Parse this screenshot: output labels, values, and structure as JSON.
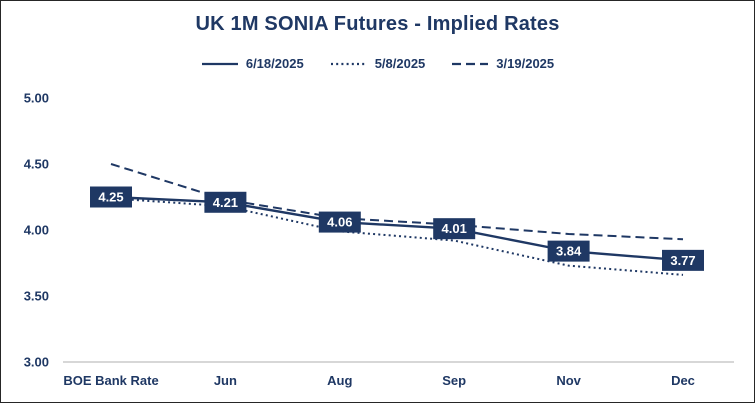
{
  "title": "UK 1M SONIA Futures - Implied Rates",
  "chart_data": {
    "type": "line",
    "title": "UK 1M SONIA Futures - Implied Rates",
    "categories": [
      "BOE Bank Rate",
      "Jun",
      "Aug",
      "Sep",
      "Nov",
      "Dec"
    ],
    "series": [
      {
        "name": "6/18/2025",
        "style": "solid",
        "data_labels": true,
        "values": [
          4.25,
          4.21,
          4.06,
          4.01,
          3.84,
          3.77
        ]
      },
      {
        "name": "5/8/2025",
        "style": "dotted",
        "data_labels": false,
        "values": [
          4.24,
          4.18,
          3.99,
          3.92,
          3.73,
          3.66
        ]
      },
      {
        "name": "3/19/2025",
        "style": "dashed",
        "data_labels": false,
        "values": [
          4.5,
          4.23,
          4.09,
          4.04,
          3.97,
          3.93
        ]
      }
    ],
    "ylim": [
      3.0,
      5.0
    ],
    "yticks": [
      3.0,
      3.5,
      4.0,
      4.5,
      5.0
    ],
    "ytick_format": "0.00",
    "grid": false,
    "legend_position": "top",
    "colors": {
      "series": "#1F3864",
      "axis_text": "#1F3864",
      "title": "#1F3864",
      "label_bg": "#1F3864",
      "label_text": "#FFFFFF",
      "axis_line": "#BFBFBF",
      "background": "#FFFFFF"
    }
  }
}
